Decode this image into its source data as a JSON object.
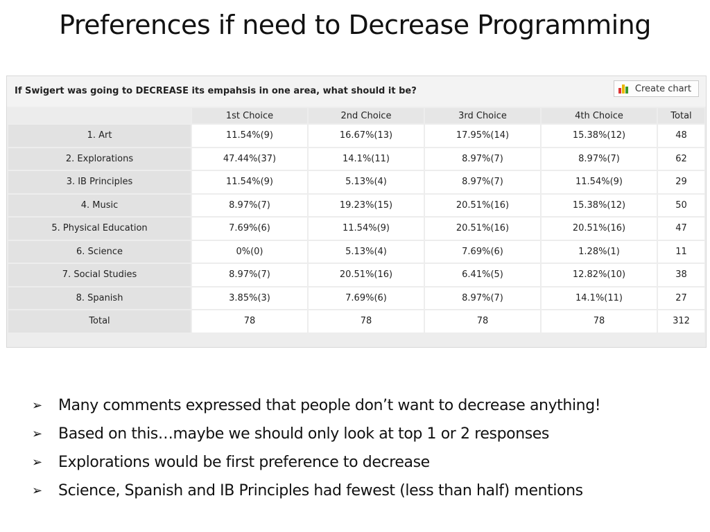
{
  "slide": {
    "title": "Preferences if need to Decrease Programming"
  },
  "survey": {
    "question": "If Swigert was going to DECREASE its empahsis in one area, what should it be?",
    "create_chart_label": "Create chart",
    "columns": [
      "1st Choice",
      "2nd Choice",
      "3rd Choice",
      "4th Choice",
      "Total"
    ],
    "rows": [
      {
        "label": "1. Art",
        "cells": [
          "11.54%(9)",
          "16.67%(13)",
          "17.95%(14)",
          "15.38%(12)",
          "48"
        ]
      },
      {
        "label": "2. Explorations",
        "cells": [
          "47.44%(37)",
          "14.1%(11)",
          "8.97%(7)",
          "8.97%(7)",
          "62"
        ]
      },
      {
        "label": "3. IB Principles",
        "cells": [
          "11.54%(9)",
          "5.13%(4)",
          "8.97%(7)",
          "11.54%(9)",
          "29"
        ]
      },
      {
        "label": "4. Music",
        "cells": [
          "8.97%(7)",
          "19.23%(15)",
          "20.51%(16)",
          "15.38%(12)",
          "50"
        ]
      },
      {
        "label": "5. Physical Education",
        "cells": [
          "7.69%(6)",
          "11.54%(9)",
          "20.51%(16)",
          "20.51%(16)",
          "47"
        ]
      },
      {
        "label": "6. Science",
        "cells": [
          "0%(0)",
          "5.13%(4)",
          "7.69%(6)",
          "1.28%(1)",
          "11"
        ]
      },
      {
        "label": "7. Social Studies",
        "cells": [
          "8.97%(7)",
          "20.51%(16)",
          "6.41%(5)",
          "12.82%(10)",
          "38"
        ]
      },
      {
        "label": "8. Spanish",
        "cells": [
          "3.85%(3)",
          "7.69%(6)",
          "8.97%(7)",
          "14.1%(11)",
          "27"
        ]
      },
      {
        "label": "Total",
        "cells": [
          "78",
          "78",
          "78",
          "78",
          "312"
        ]
      }
    ]
  },
  "bullets": [
    "Many comments expressed that people don’t want to decrease anything!",
    "Based on this…maybe we should only look at top 1 or 2 responses",
    "Explorations would be first preference to decrease",
    "Science, Spanish and IB Principles had fewest (less than half) mentions"
  ],
  "icons": {
    "bullet": "arrow-bullet-icon",
    "chart": "bar-chart-icon"
  }
}
